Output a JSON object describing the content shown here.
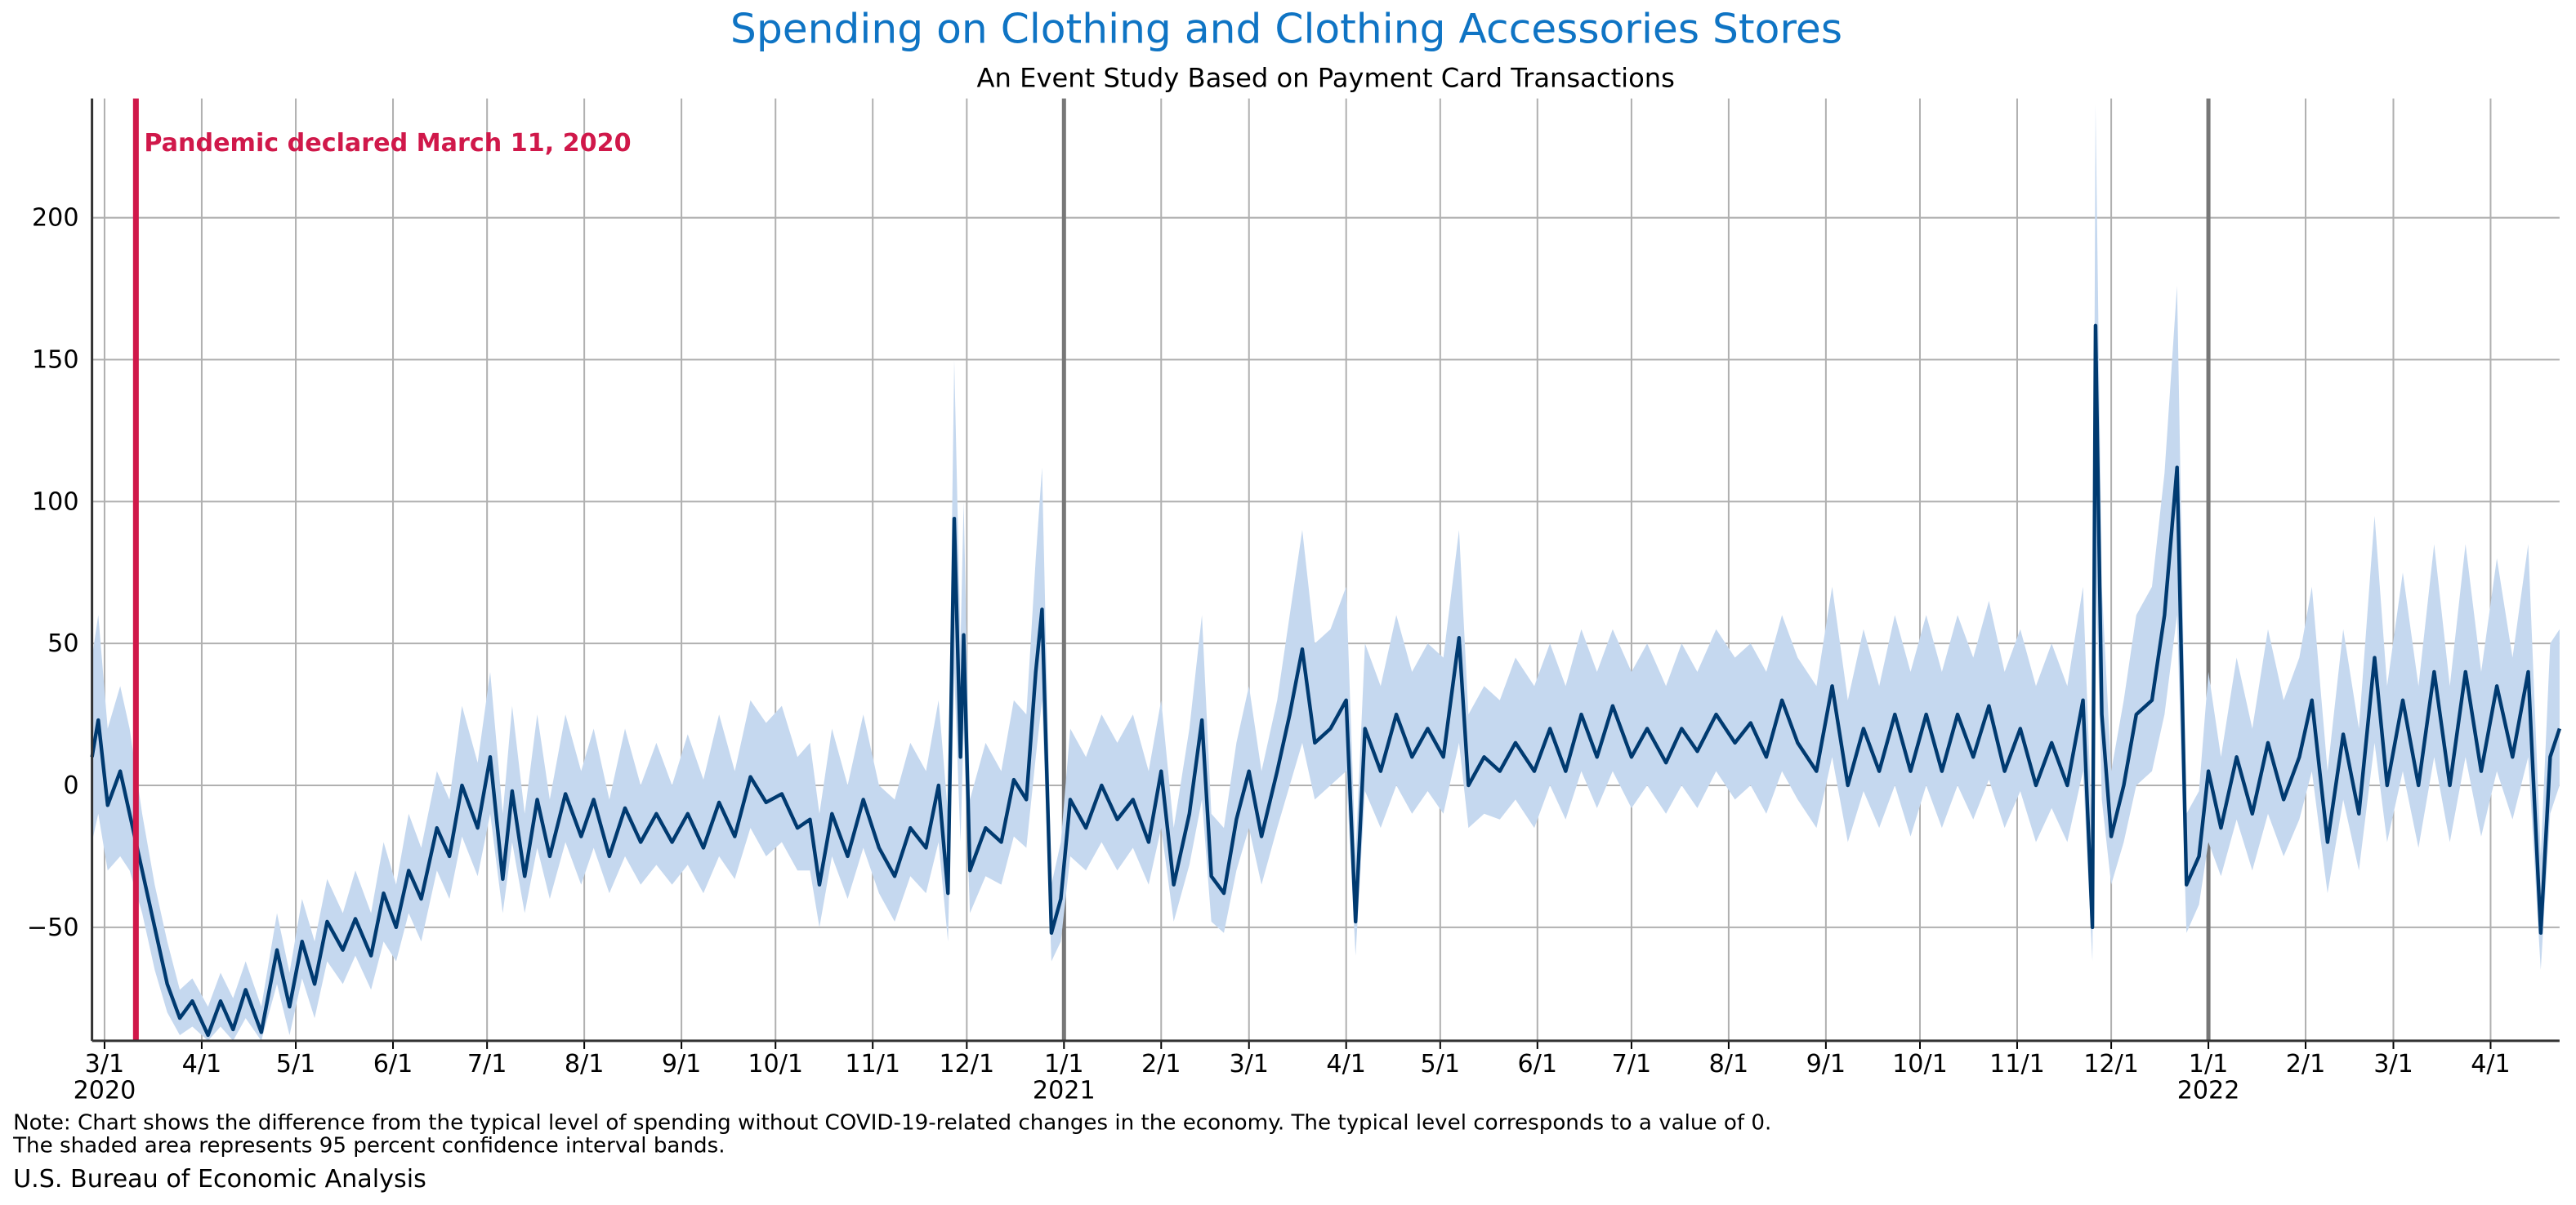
{
  "chart_data": {
    "type": "line",
    "title": "Spending on Clothing and Clothing Accessories Stores",
    "subtitle": "An Event Study Based on Payment Card Transactions",
    "note": [
      "Note: Chart shows the difference from the typical level of spending without COVID-19-related changes in the economy. The typical level corresponds to a value of 0.",
      "The shaded area represents 95 percent confidence interval bands."
    ],
    "source": "U.S. Bureau of Economic Analysis",
    "annotation": {
      "text": "Pandemic declared March 11, 2020",
      "x": "2020-03-11",
      "color": "#d0184a"
    },
    "color": "#003a70",
    "band_color": "#c5d8ef",
    "grid": true,
    "xlim": [
      "2020-02-26",
      "2022-04-23"
    ],
    "ylim": [
      -90,
      242
    ],
    "yticks": [
      {
        "value": -50,
        "label": "−50"
      },
      0,
      50,
      100,
      150,
      200
    ],
    "xticks": [
      {
        "value": "2020-03-01",
        "label": "3/1"
      },
      {
        "value": "2020-04-01",
        "label": "4/1"
      },
      {
        "value": "2020-05-01",
        "label": "5/1"
      },
      {
        "value": "2020-06-01",
        "label": "6/1"
      },
      {
        "value": "2020-07-01",
        "label": "7/1"
      },
      {
        "value": "2020-08-01",
        "label": "8/1"
      },
      {
        "value": "2020-09-01",
        "label": "9/1"
      },
      {
        "value": "2020-10-01",
        "label": "10/1"
      },
      {
        "value": "2020-11-01",
        "label": "11/1"
      },
      {
        "value": "2020-12-01",
        "label": "12/1"
      },
      {
        "value": "2021-01-01",
        "label": "1/1"
      },
      {
        "value": "2021-02-01",
        "label": "2/1"
      },
      {
        "value": "2021-03-01",
        "label": "3/1"
      },
      {
        "value": "2021-04-01",
        "label": "4/1"
      },
      {
        "value": "2021-05-01",
        "label": "5/1"
      },
      {
        "value": "2021-06-01",
        "label": "6/1"
      },
      {
        "value": "2021-07-01",
        "label": "7/1"
      },
      {
        "value": "2021-08-01",
        "label": "8/1"
      },
      {
        "value": "2021-09-01",
        "label": "9/1"
      },
      {
        "value": "2021-10-01",
        "label": "10/1"
      },
      {
        "value": "2021-11-01",
        "label": "11/1"
      },
      {
        "value": "2021-12-01",
        "label": "12/1"
      },
      {
        "value": "2022-01-01",
        "label": "1/1"
      },
      {
        "value": "2022-02-01",
        "label": "2/1"
      },
      {
        "value": "2022-03-01",
        "label": "3/1"
      },
      {
        "value": "2022-04-01",
        "label": "4/1"
      }
    ],
    "year_labels": [
      {
        "value": "2020-03-01",
        "label": "2020"
      },
      {
        "value": "2021-01-01",
        "label": "2021"
      },
      {
        "value": "2022-01-01",
        "label": "2022"
      }
    ],
    "x": [
      "2020-02-26",
      "2020-02-28",
      "2020-03-02",
      "2020-03-06",
      "2020-03-09",
      "2020-03-13",
      "2020-03-17",
      "2020-03-21",
      "2020-03-25",
      "2020-03-29",
      "2020-04-03",
      "2020-04-07",
      "2020-04-11",
      "2020-04-15",
      "2020-04-20",
      "2020-04-25",
      "2020-04-29",
      "2020-05-03",
      "2020-05-07",
      "2020-05-11",
      "2020-05-16",
      "2020-05-20",
      "2020-05-25",
      "2020-05-29",
      "2020-06-02",
      "2020-06-06",
      "2020-06-10",
      "2020-06-15",
      "2020-06-19",
      "2020-06-23",
      "2020-06-28",
      "2020-07-02",
      "2020-07-06",
      "2020-07-09",
      "2020-07-13",
      "2020-07-17",
      "2020-07-21",
      "2020-07-26",
      "2020-07-31",
      "2020-08-04",
      "2020-08-09",
      "2020-08-14",
      "2020-08-19",
      "2020-08-24",
      "2020-08-29",
      "2020-09-03",
      "2020-09-08",
      "2020-09-13",
      "2020-09-18",
      "2020-09-23",
      "2020-09-28",
      "2020-10-03",
      "2020-10-08",
      "2020-10-12",
      "2020-10-15",
      "2020-10-19",
      "2020-10-24",
      "2020-10-29",
      "2020-11-03",
      "2020-11-08",
      "2020-11-13",
      "2020-11-18",
      "2020-11-22",
      "2020-11-25",
      "2020-11-27",
      "2020-11-29",
      "2020-11-30",
      "2020-12-02",
      "2020-12-07",
      "2020-12-12",
      "2020-12-16",
      "2020-12-20",
      "2020-12-23",
      "2020-12-25",
      "2020-12-28",
      "2020-12-31",
      "2021-01-03",
      "2021-01-08",
      "2021-01-13",
      "2021-01-18",
      "2021-01-23",
      "2021-01-28",
      "2021-02-01",
      "2021-02-05",
      "2021-02-10",
      "2021-02-14",
      "2021-02-17",
      "2021-02-21",
      "2021-02-25",
      "2021-03-01",
      "2021-03-05",
      "2021-03-10",
      "2021-03-14",
      "2021-03-18",
      "2021-03-22",
      "2021-03-27",
      "2021-04-01",
      "2021-04-04",
      "2021-04-07",
      "2021-04-12",
      "2021-04-17",
      "2021-04-22",
      "2021-04-27",
      "2021-05-02",
      "2021-05-07",
      "2021-05-10",
      "2021-05-15",
      "2021-05-20",
      "2021-05-25",
      "2021-05-31",
      "2021-06-05",
      "2021-06-10",
      "2021-06-15",
      "2021-06-20",
      "2021-06-25",
      "2021-07-01",
      "2021-07-06",
      "2021-07-12",
      "2021-07-17",
      "2021-07-22",
      "2021-07-28",
      "2021-08-03",
      "2021-08-08",
      "2021-08-13",
      "2021-08-18",
      "2021-08-23",
      "2021-08-29",
      "2021-09-03",
      "2021-09-08",
      "2021-09-13",
      "2021-09-18",
      "2021-09-23",
      "2021-09-28",
      "2021-10-03",
      "2021-10-08",
      "2021-10-13",
      "2021-10-18",
      "2021-10-23",
      "2021-10-28",
      "2021-11-02",
      "2021-11-07",
      "2021-11-12",
      "2021-11-17",
      "2021-11-22",
      "2021-11-25",
      "2021-11-26",
      "2021-11-28",
      "2021-12-01",
      "2021-12-05",
      "2021-12-09",
      "2021-12-14",
      "2021-12-18",
      "2021-12-22",
      "2021-12-25",
      "2021-12-29",
      "2022-01-01",
      "2022-01-05",
      "2022-01-10",
      "2022-01-15",
      "2022-01-20",
      "2022-01-25",
      "2022-01-30",
      "2022-02-03",
      "2022-02-08",
      "2022-02-13",
      "2022-02-18",
      "2022-02-23",
      "2022-02-27",
      "2022-03-04",
      "2022-03-09",
      "2022-03-14",
      "2022-03-19",
      "2022-03-24",
      "2022-03-29",
      "2022-04-03",
      "2022-04-08",
      "2022-04-13",
      "2022-04-17",
      "2022-04-20",
      "2022-04-23"
    ],
    "values": [
      10,
      23,
      -7,
      5,
      -10,
      -30,
      -50,
      -70,
      -82,
      -76,
      -88,
      -76,
      -86,
      -72,
      -87,
      -58,
      -78,
      -55,
      -70,
      -48,
      -58,
      -47,
      -60,
      -38,
      -50,
      -30,
      -40,
      -15,
      -25,
      0,
      -15,
      10,
      -33,
      -2,
      -32,
      -5,
      -25,
      -3,
      -18,
      -5,
      -25,
      -8,
      -20,
      -10,
      -20,
      -10,
      -22,
      -6,
      -18,
      3,
      -6,
      -3,
      -15,
      -12,
      -35,
      -10,
      -25,
      -5,
      -22,
      -32,
      -15,
      -22,
      0,
      -38,
      94,
      10,
      53,
      -30,
      -15,
      -20,
      2,
      -5,
      40,
      62,
      -52,
      -40,
      -5,
      -15,
      0,
      -12,
      -5,
      -20,
      5,
      -35,
      -10,
      23,
      -32,
      -38,
      -12,
      5,
      -18,
      5,
      25,
      48,
      15,
      20,
      30,
      -48,
      20,
      5,
      25,
      10,
      20,
      10,
      52,
      0,
      10,
      5,
      15,
      5,
      20,
      5,
      25,
      10,
      28,
      10,
      20,
      8,
      20,
      12,
      25,
      15,
      22,
      10,
      30,
      15,
      5,
      35,
      0,
      20,
      5,
      25,
      5,
      25,
      5,
      25,
      10,
      28,
      5,
      20,
      0,
      15,
      0,
      30,
      -50,
      162,
      25,
      -18,
      0,
      25,
      30,
      60,
      112,
      -35,
      -25,
      5,
      -15,
      10,
      -10,
      15,
      -5,
      10,
      30,
      -20,
      18,
      -10,
      45,
      0,
      30,
      0,
      40,
      0,
      40,
      5,
      35,
      10,
      40,
      -52,
      10,
      20
    ],
    "lower": [
      -20,
      -10,
      -30,
      -25,
      -30,
      -45,
      -65,
      -80,
      -88,
      -85,
      -90,
      -85,
      -90,
      -82,
      -90,
      -70,
      -88,
      -68,
      -82,
      -62,
      -70,
      -60,
      -72,
      -55,
      -62,
      -45,
      -55,
      -30,
      -40,
      -18,
      -32,
      -10,
      -45,
      -20,
      -45,
      -22,
      -40,
      -20,
      -35,
      -22,
      -38,
      -25,
      -35,
      -28,
      -35,
      -28,
      -38,
      -25,
      -33,
      -15,
      -25,
      -20,
      -30,
      -30,
      -50,
      -25,
      -40,
      -22,
      -38,
      -48,
      -32,
      -38,
      -20,
      -55,
      40,
      -20,
      20,
      -45,
      -32,
      -35,
      -18,
      -22,
      10,
      30,
      -62,
      -55,
      -25,
      -30,
      -20,
      -30,
      -22,
      -35,
      -15,
      -48,
      -28,
      -5,
      -48,
      -52,
      -30,
      -15,
      -35,
      -15,
      0,
      15,
      -5,
      0,
      5,
      -60,
      -2,
      -15,
      0,
      -10,
      -2,
      -10,
      15,
      -15,
      -10,
      -12,
      -5,
      -15,
      0,
      -12,
      5,
      -8,
      5,
      -8,
      0,
      -10,
      0,
      -8,
      5,
      -5,
      0,
      -10,
      5,
      -5,
      -15,
      10,
      -20,
      -2,
      -15,
      0,
      -18,
      0,
      -15,
      0,
      -12,
      2,
      -15,
      -2,
      -20,
      -8,
      -20,
      5,
      -62,
      80,
      -5,
      -35,
      -20,
      0,
      5,
      25,
      60,
      -52,
      -42,
      -20,
      -32,
      -12,
      -30,
      -10,
      -25,
      -12,
      5,
      -38,
      -5,
      -30,
      15,
      -20,
      5,
      -22,
      10,
      -20,
      10,
      -18,
      5,
      -12,
      10,
      -65,
      -10,
      0
    ],
    "upper": [
      45,
      60,
      20,
      35,
      20,
      -10,
      -35,
      -55,
      -72,
      -68,
      -78,
      -66,
      -75,
      -62,
      -78,
      -45,
      -66,
      -40,
      -55,
      -33,
      -45,
      -30,
      -45,
      -20,
      -35,
      -10,
      -22,
      5,
      -5,
      28,
      8,
      40,
      -10,
      28,
      -10,
      25,
      -5,
      25,
      5,
      20,
      -5,
      20,
      0,
      15,
      0,
      18,
      2,
      25,
      5,
      30,
      22,
      28,
      10,
      15,
      -10,
      20,
      0,
      25,
      0,
      -5,
      15,
      5,
      30,
      -10,
      150,
      50,
      100,
      -5,
      15,
      5,
      30,
      25,
      80,
      112,
      -35,
      -20,
      20,
      10,
      25,
      15,
      25,
      5,
      30,
      -15,
      20,
      60,
      -10,
      -15,
      15,
      35,
      5,
      30,
      60,
      90,
      50,
      55,
      70,
      -25,
      50,
      35,
      60,
      40,
      50,
      45,
      90,
      25,
      35,
      30,
      45,
      35,
      50,
      35,
      55,
      40,
      55,
      40,
      50,
      35,
      50,
      40,
      55,
      45,
      50,
      40,
      60,
      45,
      35,
      70,
      30,
      55,
      35,
      60,
      40,
      60,
      40,
      60,
      45,
      65,
      40,
      55,
      35,
      50,
      35,
      70,
      -20,
      240,
      70,
      5,
      30,
      60,
      70,
      110,
      176,
      -10,
      -2,
      40,
      10,
      45,
      20,
      55,
      30,
      45,
      70,
      5,
      55,
      20,
      95,
      35,
      75,
      35,
      85,
      35,
      85,
      40,
      80,
      45,
      85,
      -25,
      50,
      55
    ]
  }
}
